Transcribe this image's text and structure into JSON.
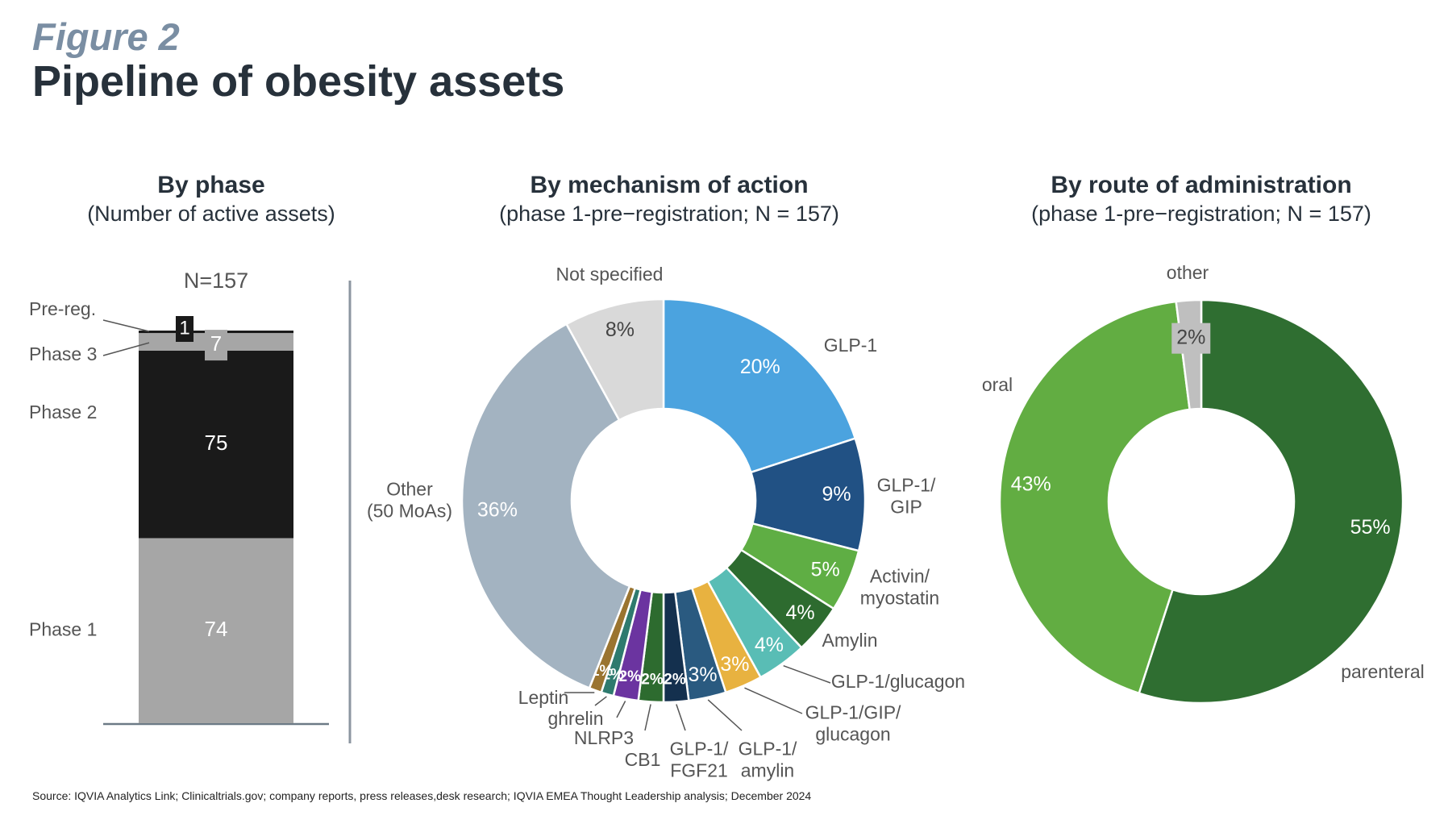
{
  "figure_label": "Figure 2",
  "figure_title": "Pipeline of obesity assets",
  "source": "Source: IQVIA Analytics Link; Clinicaltrials.gov; company reports, press releases,desk research; IQVIA EMEA Thought Leadership analysis; December 2024",
  "chart_data": [
    {
      "type": "bar",
      "title": "By phase",
      "subtitle": "(Number of active assets)",
      "total_label": "N=157",
      "categories": [
        "Phase 1",
        "Phase 2",
        "Phase 3",
        "Pre-reg."
      ],
      "values": [
        74,
        75,
        7,
        1
      ],
      "value_labels": [
        "74",
        "75",
        "7",
        "1"
      ],
      "colors": [
        "#a6a6a6",
        "#1a1a1a",
        "#a6a6a6",
        "#1a1a1a"
      ],
      "stacked": true
    },
    {
      "type": "pie",
      "donut": true,
      "title": "By mechanism of action",
      "subtitle": "(phase 1-pre−registration; N = 157)",
      "slices": [
        {
          "label": "GLP-1",
          "value": 20,
          "pct": "20%",
          "color": "#4ba3df"
        },
        {
          "label": "GLP-1/\nGIP",
          "value": 9,
          "pct": "9%",
          "color": "#215184"
        },
        {
          "label": "Activin/\nmyostatin",
          "value": 5,
          "pct": "5%",
          "color": "#5fae44"
        },
        {
          "label": "Amylin",
          "value": 4,
          "pct": "4%",
          "color": "#2d6b2f"
        },
        {
          "label": "GLP-1/glucagon",
          "value": 4,
          "pct": "4%",
          "color": "#59bdb5"
        },
        {
          "label": "GLP-1/GIP/\nglucagon",
          "value": 3,
          "pct": "3%",
          "color": "#e8b240"
        },
        {
          "label": "GLP-1/\namylin",
          "value": 3,
          "pct": "3%",
          "color": "#2a5a80"
        },
        {
          "label": "GLP-1/\nFGF21",
          "value": 2,
          "pct": "2%",
          "color": "#14304e"
        },
        {
          "label": "CB1",
          "value": 2,
          "pct": "2%",
          "color": "#2d6b2f"
        },
        {
          "label": "NLRP3",
          "value": 2,
          "pct": "2%",
          "color": "#6b34a0"
        },
        {
          "label": "ghrelin",
          "value": 1,
          "pct": "1%",
          "color": "#2e7a6e"
        },
        {
          "label": "Leptin",
          "value": 1,
          "pct": "1%",
          "color": "#9a7430"
        },
        {
          "label": "Other\n(50 MoAs)",
          "value": 36,
          "pct": "36%",
          "color": "#a3b3c1"
        },
        {
          "label": "Not specified",
          "value": 8,
          "pct": "8%",
          "color": "#d9d9d9"
        }
      ]
    },
    {
      "type": "pie",
      "donut": true,
      "title": "By route of administration",
      "subtitle": "(phase 1-pre−registration; N = 157)",
      "slices": [
        {
          "label": "parenteral",
          "value": 55,
          "pct": "55%",
          "color": "#2f6e31"
        },
        {
          "label": "oral",
          "value": 43,
          "pct": "43%",
          "color": "#62ad42"
        },
        {
          "label": "other",
          "value": 2,
          "pct": "2%",
          "color": "#bfbfbf"
        }
      ]
    }
  ]
}
